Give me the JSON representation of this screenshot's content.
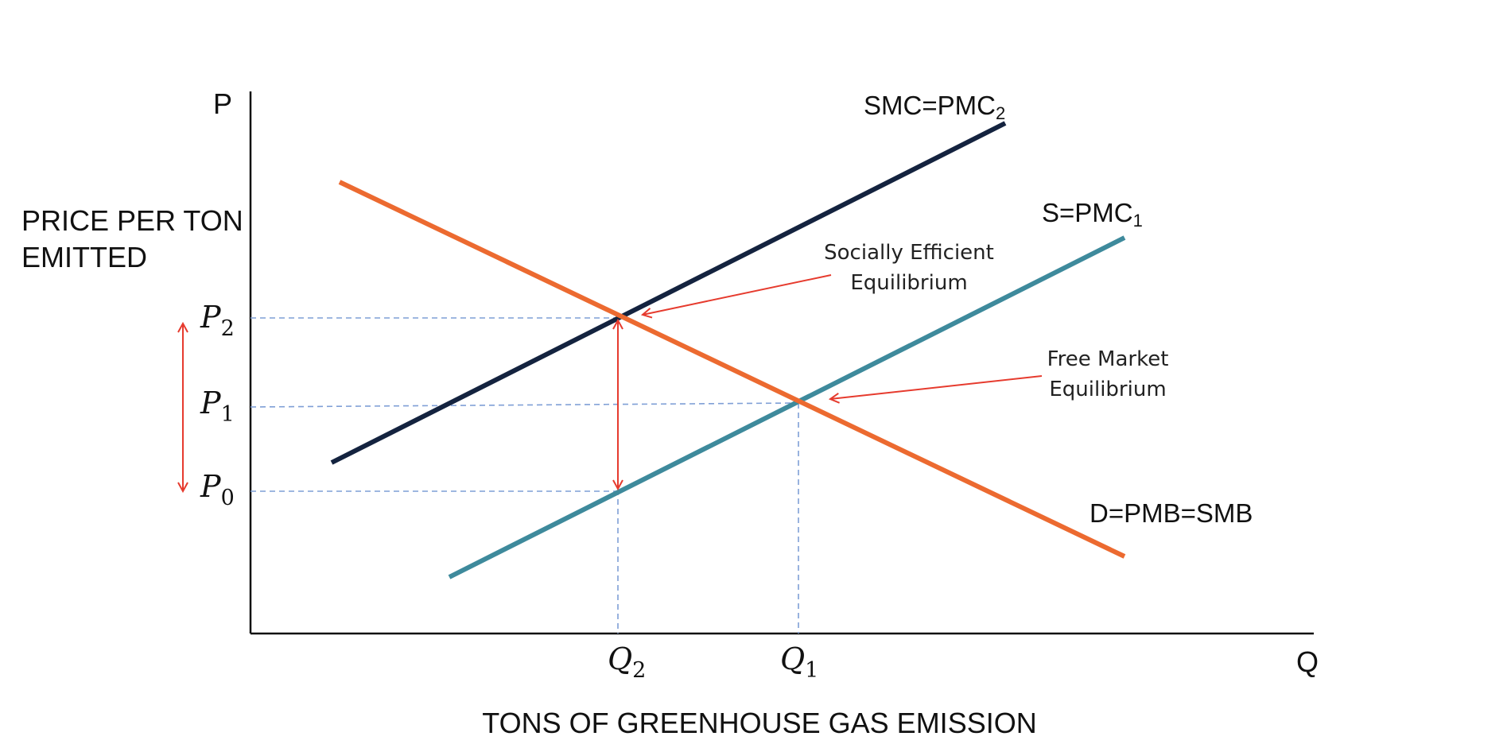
{
  "axes": {
    "y_label_top": "P",
    "x_label_end": "Q",
    "y_title_line1": "PRICE PER TON",
    "y_title_line2": "EMITTED",
    "x_title": "TONS OF GREENHOUSE GAS EMISSION"
  },
  "curves": {
    "smc": {
      "label": "SMC=PMC",
      "subscript": "2",
      "color": "#14233f"
    },
    "supply": {
      "label": "S=PMC",
      "subscript": "1",
      "color": "#3e8a9c"
    },
    "demand": {
      "label": "D=PMB=SMB",
      "color": "#ec6a30"
    }
  },
  "prices": {
    "p2": {
      "base": "P",
      "sub": "2"
    },
    "p1": {
      "base": "P",
      "sub": "1"
    },
    "p0": {
      "base": "P",
      "sub": "0"
    }
  },
  "quantities": {
    "q2": {
      "base": "Q",
      "sub": "2"
    },
    "q1": {
      "base": "Q",
      "sub": "1"
    }
  },
  "annotations": {
    "social": {
      "line1": "Socially Efficient",
      "line2": "Equilibrium"
    },
    "market": {
      "line1": "Free Market",
      "line2": "Equilibrium"
    }
  },
  "colors": {
    "axis": "#111111",
    "guide": "#7f9fd6",
    "arrow": "#e63b2e"
  }
}
